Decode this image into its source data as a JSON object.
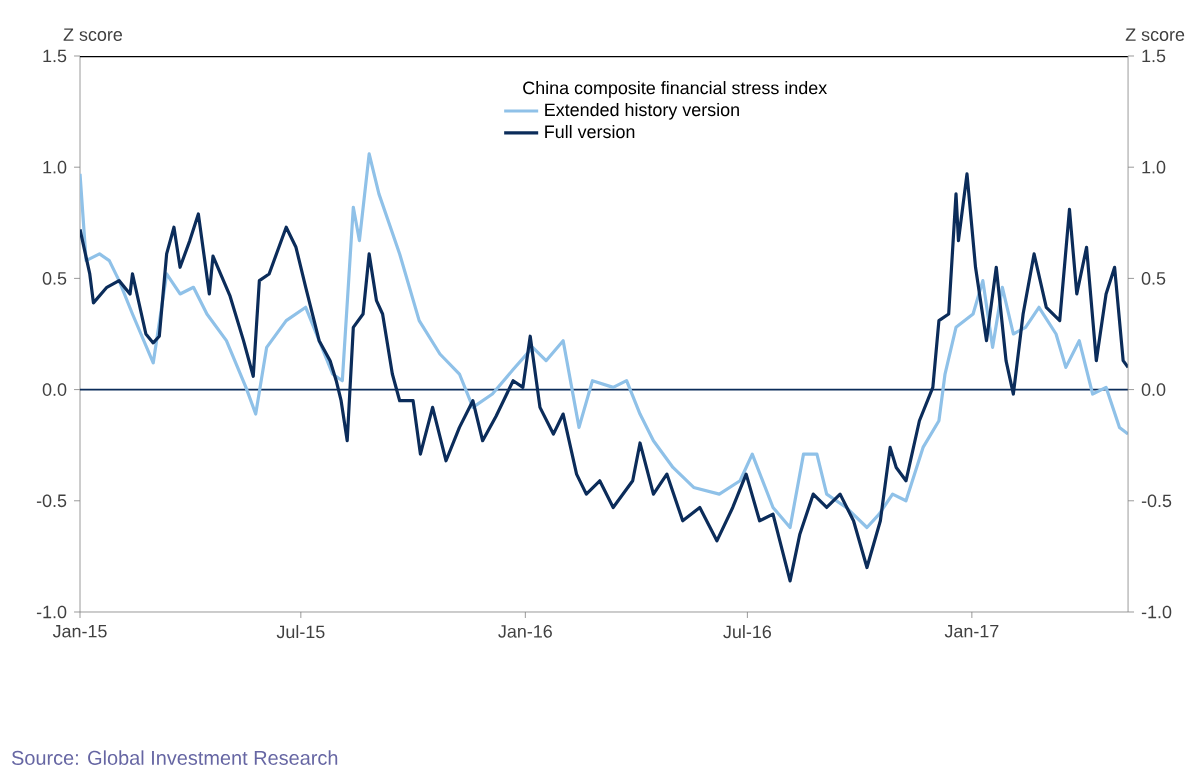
{
  "chart_data": {
    "type": "line",
    "ylabel": "Z score",
    "y2label": "Z score",
    "legend_title": "China composite financial stress index",
    "annotations": [
      "Source: Global Investment Research"
    ],
    "xlim": [
      "2015-01-01",
      "2017-05-09"
    ],
    "xticks": [
      {
        "value": "2015-01-01",
        "label": "Jan-15"
      },
      {
        "value": "2015-07-01",
        "label": "Jul-15"
      },
      {
        "value": "2016-01-01",
        "label": "Jan-16"
      },
      {
        "value": "2016-07-01",
        "label": "Jul-16"
      },
      {
        "value": "2017-01-01",
        "label": "Jan-17"
      }
    ],
    "ylim": [
      -1.0,
      1.5
    ],
    "yticks": [
      {
        "value": -1,
        "label": "-1.0"
      },
      {
        "value": -0.5,
        "label": "-0.5"
      },
      {
        "value": 0,
        "label": "0.0"
      },
      {
        "value": 0.5,
        "label": "0.5"
      },
      {
        "value": 1,
        "label": "1.0"
      },
      {
        "value": 1.5,
        "label": "1.5"
      }
    ],
    "y2lim": [
      -1.0,
      1.5
    ],
    "y2ticks": [
      {
        "value": -1,
        "label": "-1.0"
      },
      {
        "value": -0.5,
        "label": "-0.5"
      },
      {
        "value": 0,
        "label": "0.0"
      },
      {
        "value": 0.5,
        "label": "0.5"
      },
      {
        "value": 1,
        "label": "1.0"
      },
      {
        "value": 1.5,
        "label": "1.5"
      }
    ],
    "ref_lines": [
      {
        "axis": "y",
        "value": 0,
        "color": "#0b2c5a"
      }
    ],
    "legend": "top",
    "grid": false,
    "marker": "none",
    "line_style": "solid",
    "series": [
      {
        "name": "Extended history version",
        "color": "#8fc1e8",
        "x": [
          "2015-01-01",
          "2015-01-06",
          "2015-01-17",
          "2015-01-25",
          "2015-02-02",
          "2015-02-13",
          "2015-03-02",
          "2015-03-13",
          "2015-03-24",
          "2015-04-04",
          "2015-04-15",
          "2015-05-01",
          "2015-05-17",
          "2015-05-25",
          "2015-06-03",
          "2015-06-19",
          "2015-07-05",
          "2015-07-16",
          "2015-07-27",
          "2015-08-04",
          "2015-08-13",
          "2015-08-18",
          "2015-08-26",
          "2015-09-03",
          "2015-09-20",
          "2015-10-06",
          "2015-10-23",
          "2015-11-08",
          "2015-11-19",
          "2015-12-05",
          "2015-12-22",
          "2016-01-07",
          "2016-01-18",
          "2016-02-01",
          "2016-02-14",
          "2016-02-25",
          "2016-03-13",
          "2016-03-24",
          "2016-04-04",
          "2016-04-15",
          "2016-05-01",
          "2016-05-18",
          "2016-06-08",
          "2016-06-25",
          "2016-07-05",
          "2016-07-22",
          "2016-08-05",
          "2016-08-16",
          "2016-08-27",
          "2016-09-04",
          "2016-09-20",
          "2016-10-07",
          "2016-10-17",
          "2016-10-28",
          "2016-11-08",
          "2016-11-22",
          "2016-12-05",
          "2016-12-10",
          "2016-12-19",
          "2017-01-02",
          "2017-01-10",
          "2017-01-18",
          "2017-01-26",
          "2017-02-04",
          "2017-02-14",
          "2017-02-25",
          "2017-03-11",
          "2017-03-19",
          "2017-03-30",
          "2017-04-10",
          "2017-04-21",
          "2017-05-02",
          "2017-05-09"
        ],
        "values": [
          0.97,
          0.58,
          0.61,
          0.58,
          0.49,
          0.34,
          0.12,
          0.52,
          0.43,
          0.46,
          0.34,
          0.22,
          0.01,
          -0.11,
          0.19,
          0.31,
          0.37,
          0.22,
          0.07,
          0.04,
          0.82,
          0.67,
          1.06,
          0.88,
          0.61,
          0.31,
          0.16,
          0.07,
          -0.08,
          -0.02,
          0.09,
          0.19,
          0.13,
          0.22,
          -0.17,
          0.04,
          0.01,
          0.04,
          -0.11,
          -0.23,
          -0.35,
          -0.44,
          -0.47,
          -0.41,
          -0.29,
          -0.53,
          -0.62,
          -0.29,
          -0.29,
          -0.47,
          -0.53,
          -0.62,
          -0.56,
          -0.47,
          -0.5,
          -0.26,
          -0.14,
          0.07,
          0.28,
          0.34,
          0.49,
          0.19,
          0.46,
          0.25,
          0.28,
          0.37,
          0.25,
          0.1,
          0.22,
          -0.02,
          0.01,
          -0.17,
          -0.2
        ]
      },
      {
        "name": "Full version",
        "color": "#0b2c5a",
        "x": [
          "2015-01-01",
          "2015-01-09",
          "2015-01-12",
          "2015-01-23",
          "2015-02-02",
          "2015-02-11",
          "2015-02-13",
          "2015-02-24",
          "2015-03-02",
          "2015-03-07",
          "2015-03-13",
          "2015-03-19",
          "2015-03-24",
          "2015-04-01",
          "2015-04-08",
          "2015-04-17",
          "2015-04-20",
          "2015-05-04",
          "2015-05-15",
          "2015-05-23",
          "2015-05-28",
          "2015-06-05",
          "2015-06-19",
          "2015-06-27",
          "2015-07-05",
          "2015-07-16",
          "2015-07-25",
          "2015-07-30",
          "2015-08-03",
          "2015-08-08",
          "2015-08-13",
          "2015-08-21",
          "2015-08-26",
          "2015-09-01",
          "2015-09-06",
          "2015-09-14",
          "2015-09-20",
          "2015-10-01",
          "2015-10-07",
          "2015-10-17",
          "2015-10-28",
          "2015-11-08",
          "2015-11-19",
          "2015-11-27",
          "2015-12-08",
          "2015-12-22",
          "2015-12-30",
          "2016-01-05",
          "2016-01-13",
          "2016-01-24",
          "2016-02-01",
          "2016-02-12",
          "2016-02-20",
          "2016-03-02",
          "2016-03-13",
          "2016-03-29",
          "2016-04-04",
          "2016-04-15",
          "2016-04-26",
          "2016-05-09",
          "2016-05-23",
          "2016-06-06",
          "2016-06-19",
          "2016-06-30",
          "2016-07-11",
          "2016-07-22",
          "2016-08-05",
          "2016-08-13",
          "2016-08-24",
          "2016-09-04",
          "2016-09-15",
          "2016-09-26",
          "2016-10-07",
          "2016-10-18",
          "2016-10-26",
          "2016-10-31",
          "2016-11-08",
          "2016-11-19",
          "2016-11-30",
          "2016-12-05",
          "2016-12-13",
          "2016-12-19",
          "2016-12-21",
          "2016-12-28",
          "2017-01-04",
          "2017-01-13",
          "2017-01-21",
          "2017-01-29",
          "2017-02-04",
          "2017-02-12",
          "2017-02-21",
          "2017-03-03",
          "2017-03-14",
          "2017-03-22",
          "2017-03-28",
          "2017-04-05",
          "2017-04-13",
          "2017-04-21",
          "2017-04-28",
          "2017-05-05",
          "2017-05-09"
        ],
        "values": [
          0.72,
          0.52,
          0.39,
          0.46,
          0.49,
          0.43,
          0.52,
          0.25,
          0.21,
          0.24,
          0.61,
          0.73,
          0.55,
          0.67,
          0.79,
          0.43,
          0.6,
          0.42,
          0.22,
          0.06,
          0.49,
          0.52,
          0.73,
          0.64,
          0.46,
          0.22,
          0.13,
          0.04,
          -0.05,
          -0.23,
          0.28,
          0.34,
          0.61,
          0.4,
          0.34,
          0.07,
          -0.05,
          -0.05,
          -0.29,
          -0.08,
          -0.32,
          -0.17,
          -0.05,
          -0.23,
          -0.12,
          0.04,
          0.01,
          0.24,
          -0.08,
          -0.2,
          -0.11,
          -0.38,
          -0.47,
          -0.41,
          -0.53,
          -0.41,
          -0.24,
          -0.47,
          -0.38,
          -0.59,
          -0.53,
          -0.68,
          -0.53,
          -0.38,
          -0.59,
          -0.56,
          -0.86,
          -0.65,
          -0.47,
          -0.53,
          -0.47,
          -0.59,
          -0.8,
          -0.59,
          -0.26,
          -0.35,
          -0.41,
          -0.14,
          0.01,
          0.31,
          0.34,
          0.88,
          0.67,
          0.97,
          0.55,
          0.22,
          0.55,
          0.13,
          -0.02,
          0.34,
          0.61,
          0.37,
          0.31,
          0.81,
          0.43,
          0.64,
          0.13,
          0.43,
          0.55,
          0.13,
          0.1
        ]
      }
    ]
  }
}
